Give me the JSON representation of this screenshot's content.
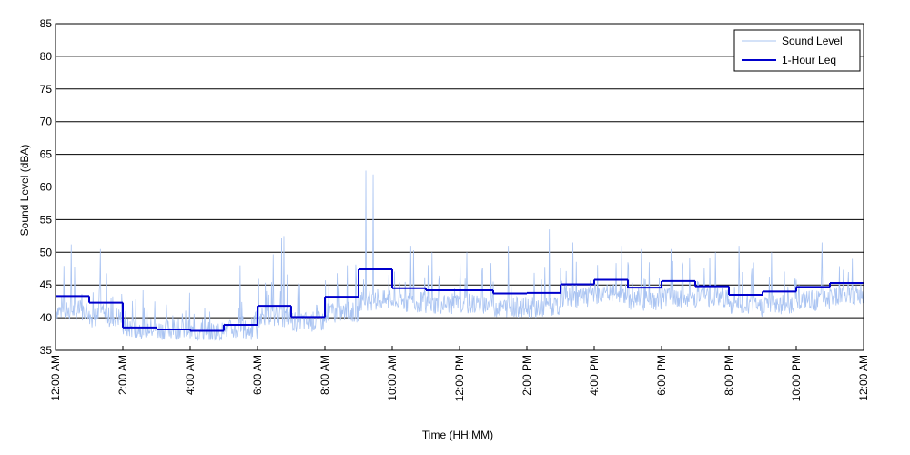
{
  "chart_data": {
    "type": "line",
    "title": "",
    "xlabel": "Time (HH:MM)",
    "ylabel": "Sound Level (dBA)",
    "ylim": [
      35,
      85
    ],
    "xlim": [
      0,
      24
    ],
    "grid": "horizontal",
    "legend_position": "top-right",
    "y_ticks": [
      35,
      40,
      45,
      50,
      55,
      60,
      65,
      70,
      75,
      80,
      85
    ],
    "x_ticks": [
      {
        "hour": 0,
        "label": "12:00 AM"
      },
      {
        "hour": 2,
        "label": "2:00 AM"
      },
      {
        "hour": 4,
        "label": "4:00 AM"
      },
      {
        "hour": 6,
        "label": "6:00 AM"
      },
      {
        "hour": 8,
        "label": "8:00 AM"
      },
      {
        "hour": 10,
        "label": "10:00 AM"
      },
      {
        "hour": 12,
        "label": "12:00 PM"
      },
      {
        "hour": 14,
        "label": "2:00 PM"
      },
      {
        "hour": 16,
        "label": "4:00 PM"
      },
      {
        "hour": 18,
        "label": "6:00 PM"
      },
      {
        "hour": 20,
        "label": "8:00 PM"
      },
      {
        "hour": 22,
        "label": "10:00 PM"
      },
      {
        "hour": 24,
        "label": "12:00 AM"
      }
    ],
    "series": [
      {
        "name": "Sound Level",
        "color": "#aac4f2",
        "style": "thin-noisy",
        "hourly_baseline": [
          40.5,
          39.5,
          37.8,
          37.6,
          37.2,
          37.5,
          39.5,
          38.8,
          40.2,
          42.0,
          41.8,
          41.5,
          41.5,
          41.0,
          41.0,
          42.5,
          43.0,
          42.0,
          42.5,
          42.5,
          41.0,
          41.5,
          42.0,
          42.8
        ],
        "hourly_peak": [
          51.2,
          50.5,
          42.0,
          42.0,
          41.5,
          48.0,
          52.5,
          45.0,
          48.0,
          62.5,
          51.0,
          50.0,
          50.0,
          51.0,
          53.5,
          51.5,
          51.0,
          50.5,
          50.5,
          50.0,
          51.0,
          50.0,
          51.5,
          49.0
        ]
      },
      {
        "name": "1-Hour Leq",
        "color": "#0000cc",
        "style": "step",
        "values": [
          43.3,
          42.3,
          38.5,
          38.2,
          38.0,
          38.9,
          41.8,
          40.1,
          43.2,
          47.4,
          44.5,
          44.2,
          44.2,
          43.7,
          43.8,
          45.1,
          45.8,
          44.6,
          45.6,
          44.8,
          43.5,
          44.0,
          44.7,
          45.3
        ]
      }
    ]
  }
}
